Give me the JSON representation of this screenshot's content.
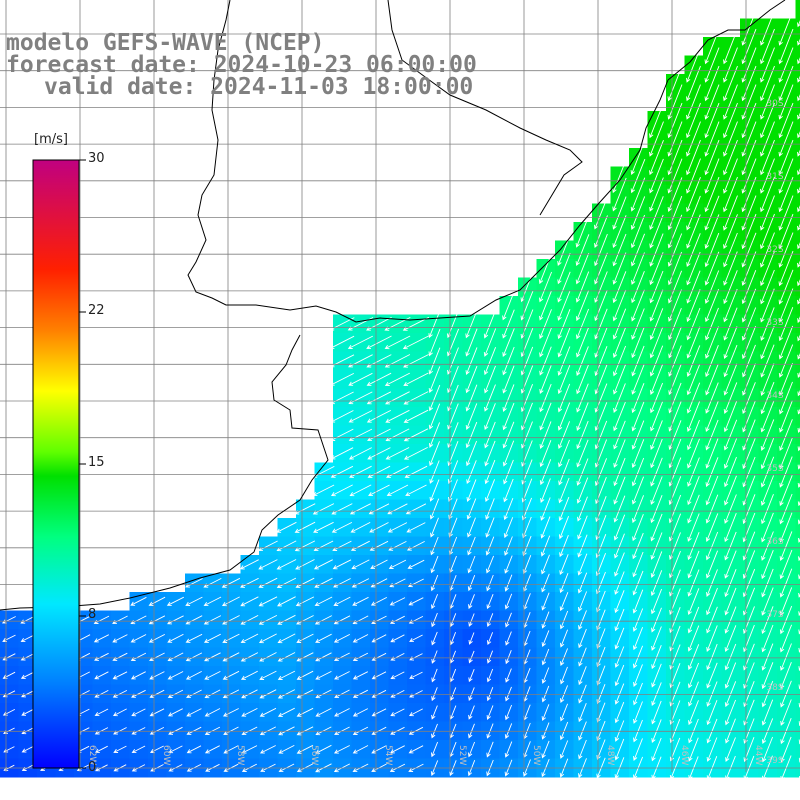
{
  "title": {
    "line1": "modelo GEFS-WAVE (NCEP)",
    "line2": "forecast date: 2024-10-23 06:00:00",
    "line3": "valid date: 2024-11-03 18:00:00"
  },
  "colorbar": {
    "unit": "[m/s]",
    "ticks": [
      "30",
      "22",
      "15",
      "8",
      "0"
    ],
    "range": [
      0,
      30
    ],
    "colors": [
      "#0000ff",
      "#0080ff",
      "#00e0ff",
      "#00ff80",
      "#00ff00",
      "#ffff00",
      "#ff8000",
      "#ff0000",
      "#c00080"
    ]
  },
  "map": {
    "variable": "wind speed and direction",
    "land_color": "#ffffff",
    "coastline_color": "#000000",
    "grid_color": "#808080",
    "vector_color": "#ffffff",
    "lon_labels": [
      "62W",
      "60W",
      "58W",
      "56W",
      "54W",
      "52W",
      "50W",
      "48W",
      "46W",
      "44W"
    ],
    "lat_labels": [
      "30S",
      "31S",
      "32S",
      "33S",
      "34S",
      "35S",
      "36S",
      "37S",
      "38S",
      "39S",
      "40S"
    ]
  }
}
